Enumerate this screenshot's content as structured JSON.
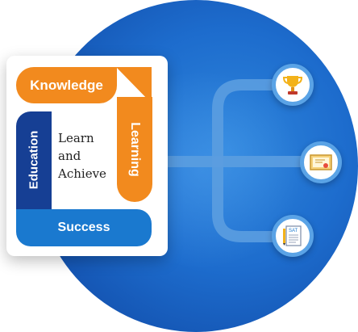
{
  "tiles": {
    "knowledge": "Knowledge",
    "learning": "Learning",
    "education": "Education",
    "success": "Success"
  },
  "center": {
    "line1": "Learn",
    "line2": "and",
    "line3": "Achieve"
  },
  "icons": [
    "trophy-icon",
    "certificate-icon",
    "sat-test-sheet-icon"
  ],
  "colors": {
    "orange": "#f28a1e",
    "navy": "#163f94",
    "blue": "#1a79cf",
    "circle": "#1d6ccd",
    "badge_ring": "#5aa3e6"
  }
}
